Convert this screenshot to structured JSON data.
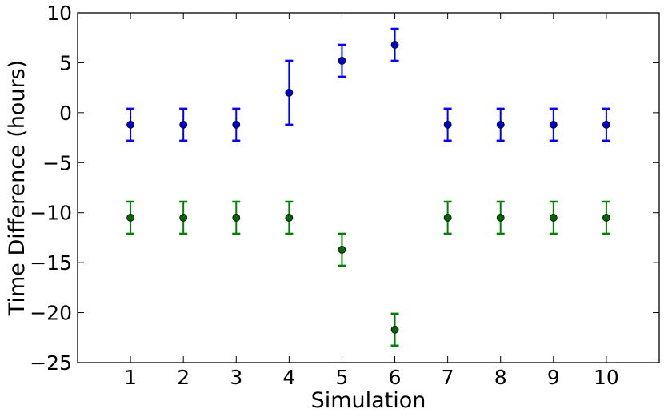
{
  "chart_data": {
    "type": "scatter",
    "title": "",
    "xlabel": "Simulation",
    "ylabel": "Time Difference (hours)",
    "xlim": [
      0,
      11
    ],
    "ylim": [
      -25,
      10
    ],
    "xticks": [
      1,
      2,
      3,
      4,
      5,
      6,
      7,
      8,
      9,
      10
    ],
    "xtick_labels": [
      "1",
      "2",
      "3",
      "4",
      "5",
      "6",
      "7",
      "8",
      "9",
      "10"
    ],
    "yticks": [
      -25,
      -20,
      -15,
      -10,
      -5,
      0,
      5,
      10
    ],
    "ytick_labels": [
      "−25",
      "−20",
      "−15",
      "−10",
      "−5",
      "0",
      "5",
      "10"
    ],
    "grid": false,
    "legend": false,
    "error_bars": true,
    "series": [
      {
        "color": "#0000ff",
        "marker_color": "#0000cc",
        "x": [
          1,
          2,
          3,
          4,
          5,
          6,
          7,
          8,
          9,
          10
        ],
        "y": [
          -1.2,
          -1.2,
          -1.2,
          2.0,
          5.2,
          6.8,
          -1.2,
          -1.2,
          -1.2,
          -1.2
        ],
        "yerr": [
          1.6,
          1.6,
          1.6,
          3.2,
          1.6,
          1.6,
          1.6,
          1.6,
          1.6,
          1.6
        ]
      },
      {
        "color": "#008000",
        "marker_color": "#006400",
        "x": [
          1,
          2,
          3,
          4,
          5,
          6,
          7,
          8,
          9,
          10
        ],
        "y": [
          -10.5,
          -10.5,
          -10.5,
          -10.5,
          -13.7,
          -21.7,
          -10.5,
          -10.5,
          -10.5,
          -10.5
        ],
        "yerr": [
          1.6,
          1.6,
          1.6,
          1.6,
          1.6,
          1.6,
          1.6,
          1.6,
          1.6,
          1.6
        ]
      }
    ]
  }
}
